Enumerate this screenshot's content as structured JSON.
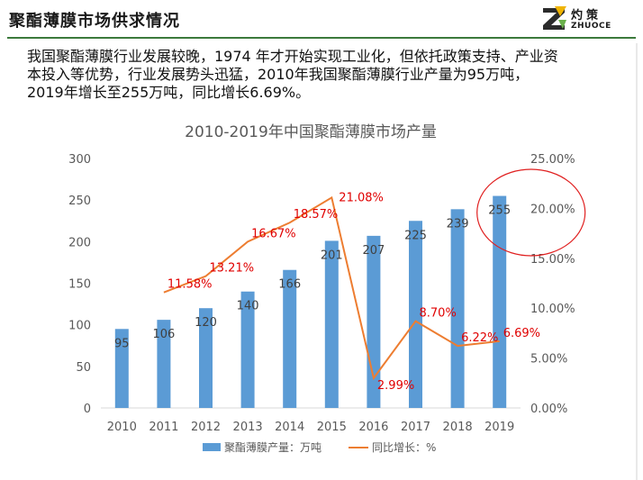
{
  "header": {
    "title": "聚酯薄膜市场供求情况",
    "logo_cn": "灼策",
    "logo_en": "ZHUOCE"
  },
  "intro": {
    "line1": "我国聚酯薄膜行业发展较晚，1974 年才开始实现工业化，但依托政策支持、产业资",
    "line2": "本投入等优势，行业发展势头迅猛，2010年我国聚酯薄膜行业产量为95万吨，",
    "line3": "2019年增长至255万吨，同比增长6.69%。"
  },
  "colors": {
    "bar": "#5b9bd5",
    "line": "#ed7d31",
    "pct_label": "#e00000",
    "highlight_circle": "#e02020",
    "header_rule": "#3c7a3c"
  },
  "chart_data": {
    "type": "bar",
    "title": "2010-2019年中国聚酯薄膜市场产量",
    "categories": [
      "2010",
      "2011",
      "2012",
      "2013",
      "2014",
      "2015",
      "2016",
      "2017",
      "2018",
      "2019"
    ],
    "series": [
      {
        "name": "聚酯薄膜产量：万吨",
        "type": "bar",
        "axis": "left",
        "values": [
          95,
          106,
          120,
          140,
          166,
          201,
          207,
          225,
          239,
          255
        ],
        "labels": [
          "95",
          "106",
          "120",
          "140",
          "166",
          "201",
          "207",
          "225",
          "239",
          "255"
        ]
      },
      {
        "name": "同比增长：%",
        "type": "line",
        "axis": "right",
        "values": [
          null,
          11.58,
          13.21,
          16.67,
          18.57,
          21.08,
          2.99,
          8.7,
          6.22,
          6.69
        ],
        "labels": [
          "",
          "11.58%",
          "13.21%",
          "16.67%",
          "18.57%",
          "21.08%",
          "2.99%",
          "8.70%",
          "6.22%",
          "6.69%"
        ]
      }
    ],
    "y_left": {
      "min": 0,
      "max": 300,
      "ticks": [
        "0",
        "50",
        "100",
        "150",
        "200",
        "250",
        "300"
      ]
    },
    "y_right": {
      "min": 0,
      "max": 25,
      "ticks": [
        "0.00%",
        "5.00%",
        "10.00%",
        "15.00%",
        "20.00%",
        "25.00%"
      ]
    },
    "legend": {
      "position": "bottom"
    },
    "grid": false,
    "annotation": "red circle highlighting 2019 value 255"
  }
}
